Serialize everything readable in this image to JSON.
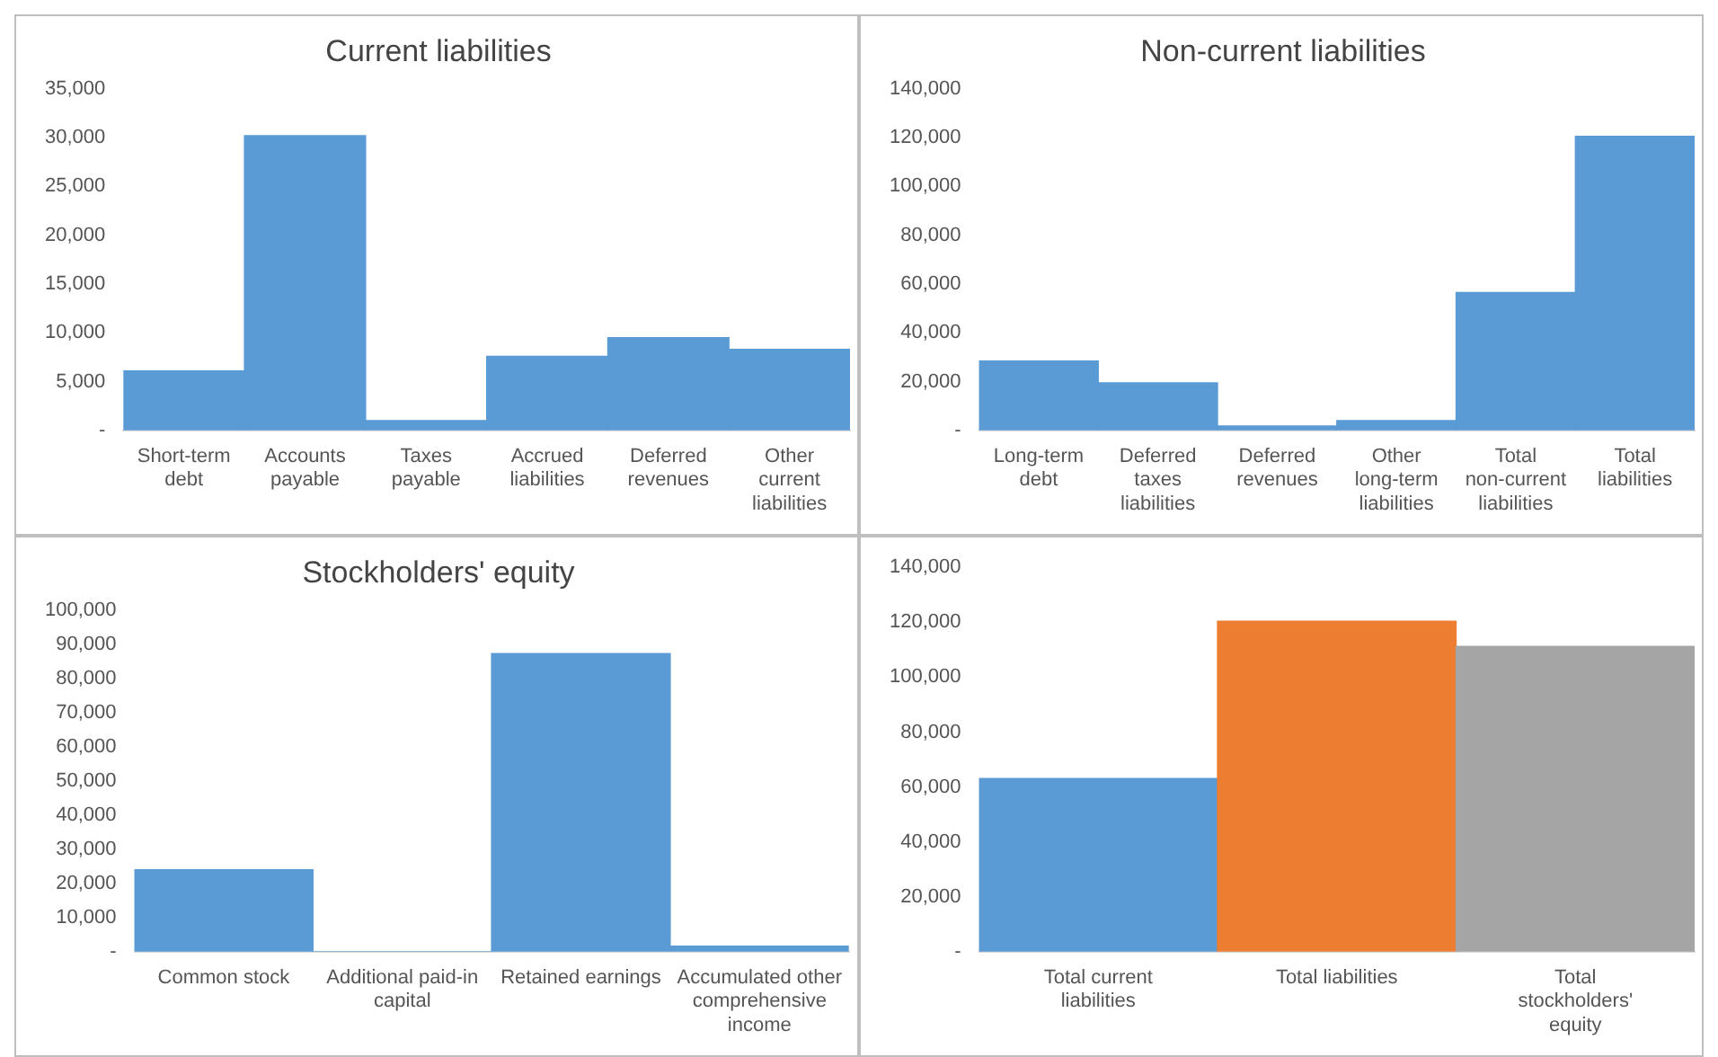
{
  "chart_data": [
    {
      "type": "bar",
      "title": "Current liabilities",
      "categories": [
        "Short-term debt",
        "Accounts payable",
        "Taxes payable",
        "Accrued liabilities",
        "Deferred revenues",
        "Other current liabilities"
      ],
      "values": [
        6100,
        30200,
        1000,
        7600,
        9500,
        8300
      ],
      "color": "#5b9bd5",
      "ylim": [
        0,
        35000
      ],
      "yticks": [
        {
          "value": 0,
          "label": "-"
        },
        {
          "value": 5000,
          "label": "5,000"
        },
        {
          "value": 10000,
          "label": "10,000"
        },
        {
          "value": 15000,
          "label": "15,000"
        },
        {
          "value": 20000,
          "label": "20,000"
        },
        {
          "value": 25000,
          "label": "25,000"
        },
        {
          "value": 30000,
          "label": "30,000"
        },
        {
          "value": 35000,
          "label": "35,000"
        }
      ],
      "grid": false,
      "legend": false
    },
    {
      "type": "bar",
      "title": "Non-current liabilities",
      "categories": [
        "Long-term debt",
        "Deferred taxes liabilities",
        "Deferred revenues",
        "Other long-term liabilities",
        "Total non-current liabilities",
        "Total liabilities"
      ],
      "values": [
        28400,
        19500,
        1800,
        4000,
        56500,
        120500
      ],
      "color": "#5b9bd5",
      "ylim": [
        0,
        140000
      ],
      "yticks": [
        {
          "value": 0,
          "label": "-"
        },
        {
          "value": 20000,
          "label": "20,000"
        },
        {
          "value": 40000,
          "label": "40,000"
        },
        {
          "value": 60000,
          "label": "60,000"
        },
        {
          "value": 80000,
          "label": "80,000"
        },
        {
          "value": 100000,
          "label": "100,000"
        },
        {
          "value": 120000,
          "label": "120,000"
        },
        {
          "value": 140000,
          "label": "140,000"
        }
      ],
      "grid": false,
      "legend": false
    },
    {
      "type": "bar",
      "title": "Stockholders' equity",
      "categories": [
        "Common stock",
        "Additional paid-in capital",
        "Retained earnings",
        "Accumulated other comprehensive income"
      ],
      "values": [
        24000,
        0,
        87300,
        1600
      ],
      "color": "#5b9bd5",
      "ylim": [
        0,
        100000
      ],
      "yticks": [
        {
          "value": 0,
          "label": "-"
        },
        {
          "value": 10000,
          "label": "10,000"
        },
        {
          "value": 20000,
          "label": "20,000"
        },
        {
          "value": 30000,
          "label": "30,000"
        },
        {
          "value": 40000,
          "label": "40,000"
        },
        {
          "value": 50000,
          "label": "50,000"
        },
        {
          "value": 60000,
          "label": "60,000"
        },
        {
          "value": 70000,
          "label": "70,000"
        },
        {
          "value": 80000,
          "label": "80,000"
        },
        {
          "value": 90000,
          "label": "90,000"
        },
        {
          "value": 100000,
          "label": "100,000"
        }
      ],
      "grid": false,
      "legend": false
    },
    {
      "type": "bar",
      "categories": [
        "Total current liabilities",
        "Total liabilities",
        "Total stockholders' equity"
      ],
      "values": [
        63100,
        120400,
        111200
      ],
      "colors": [
        "#5b9bd5",
        "#ed7d31",
        "#a5a5a5"
      ],
      "ylim": [
        0,
        140000
      ],
      "yticks": [
        {
          "value": 0,
          "label": "-"
        },
        {
          "value": 20000,
          "label": "20,000"
        },
        {
          "value": 40000,
          "label": "40,000"
        },
        {
          "value": 60000,
          "label": "60,000"
        },
        {
          "value": 80000,
          "label": "80,000"
        },
        {
          "value": 100000,
          "label": "100,000"
        },
        {
          "value": 120000,
          "label": "120,000"
        },
        {
          "value": 140000,
          "label": "140,000"
        }
      ],
      "grid": false,
      "legend": false
    }
  ]
}
